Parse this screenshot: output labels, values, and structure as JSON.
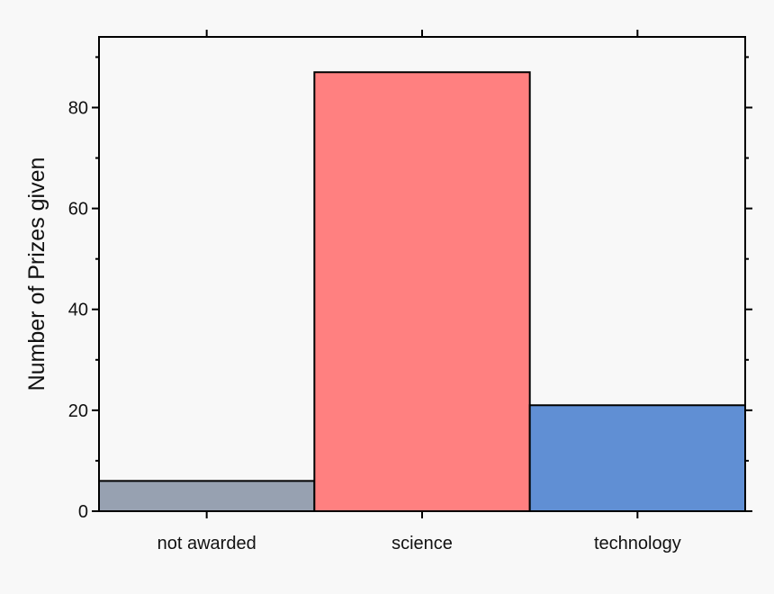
{
  "chart_data": {
    "type": "bar",
    "categories": [
      "not awarded",
      "science",
      "technology"
    ],
    "values": [
      6,
      87,
      21
    ],
    "colors": [
      "#97a1b1",
      "#ff8080",
      "#608fd4"
    ],
    "xlabel": "",
    "ylabel": "Number of Prizes given",
    "ylim": [
      0,
      94
    ],
    "yticks": [
      0,
      20,
      40,
      60,
      80
    ],
    "yticks_minor": [
      10,
      30,
      50,
      70,
      90
    ],
    "grid": false,
    "legend": "none"
  }
}
